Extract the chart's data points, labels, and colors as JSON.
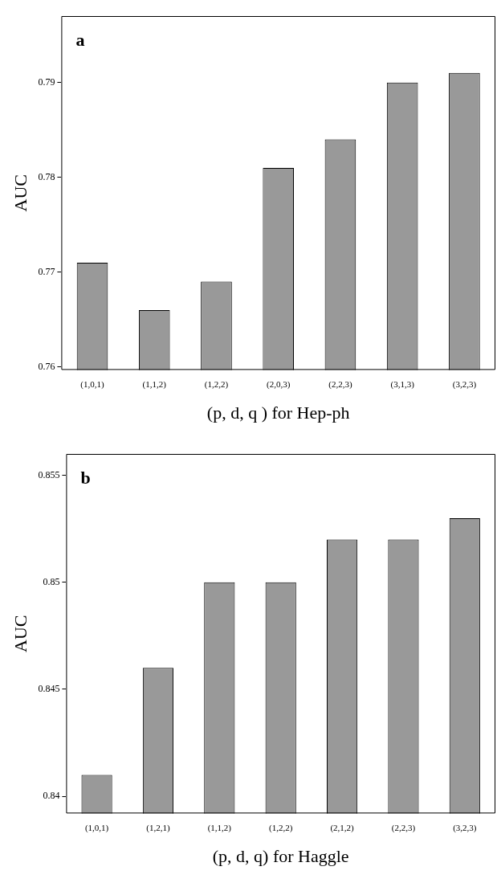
{
  "chart_data": [
    {
      "type": "bar",
      "xlabel": "(p, d, q ) for Hep-ph",
      "ylabel": "AUC",
      "annotations": [
        "a"
      ],
      "categories": [
        "(1,0,1)",
        "(1,1,2)",
        "(1,2,2)",
        "(2,0,3)",
        "(2,2,3)",
        "(3,1,3)",
        "(3,2,3)"
      ],
      "values": [
        0.771,
        0.766,
        0.769,
        0.781,
        0.784,
        0.79,
        0.791
      ],
      "color": "#999999",
      "ylim": [
        0.7597,
        0.797
      ],
      "yticks": [
        0.76,
        0.77,
        0.78,
        0.79
      ],
      "grid": false
    },
    {
      "type": "bar",
      "xlabel": "(p, d, q) for Haggle",
      "ylabel": "AUC",
      "annotations": [
        "b"
      ],
      "categories": [
        "(1,0,1)",
        "(1,2,1)",
        "(1,1,2)",
        "(1,2,2)",
        "(2,1,2)",
        "(2,2,3)",
        "(3,2,3)"
      ],
      "values": [
        0.841,
        0.846,
        0.85,
        0.85,
        0.852,
        0.852,
        0.853
      ],
      "color": "#999999",
      "ylim": [
        0.8392,
        0.856
      ],
      "yticks": [
        0.84,
        0.845,
        0.85,
        0.855
      ],
      "grid": false
    }
  ]
}
